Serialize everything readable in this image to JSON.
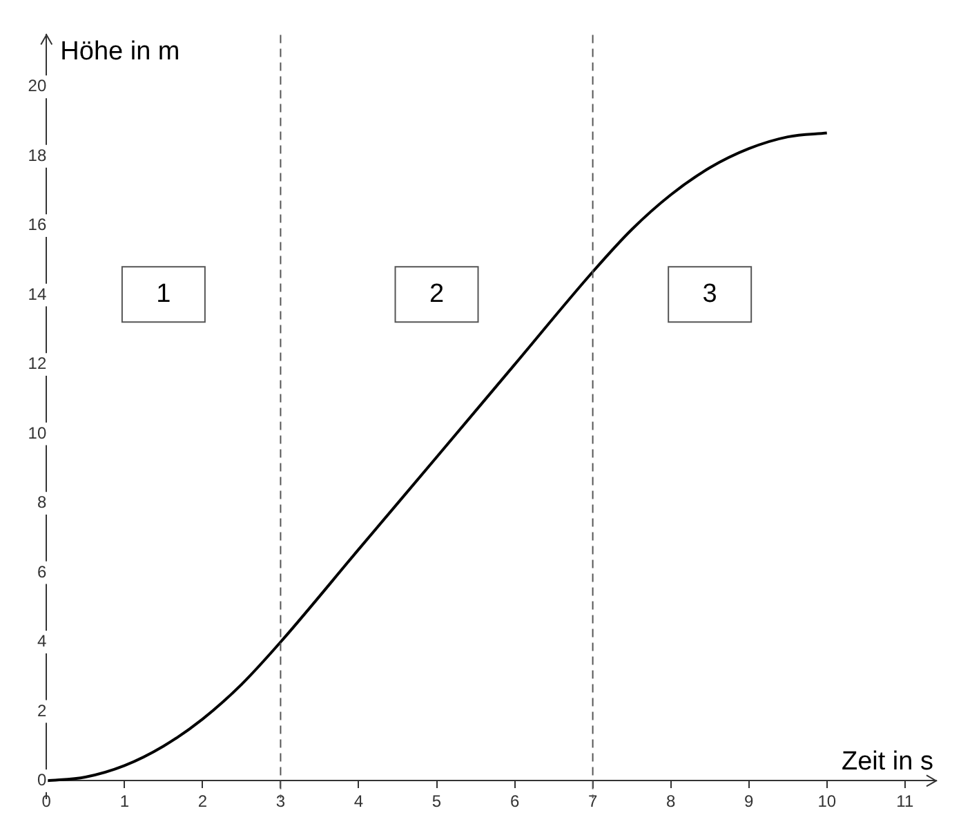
{
  "chart_data": {
    "type": "line",
    "xlabel": "Zeit in s",
    "ylabel": "Höhe in m",
    "x": [
      0,
      0.5,
      1,
      1.5,
      2,
      2.5,
      3,
      4,
      5,
      6,
      7,
      7.5,
      8,
      8.5,
      9,
      9.5,
      10
    ],
    "series": [
      {
        "color": "#000000",
        "values": [
          0,
          0.11,
          0.44,
          1,
          1.78,
          2.78,
          4,
          6.67,
          9.33,
          12,
          14.67,
          15.89,
          16.89,
          17.67,
          18.22,
          18.56,
          18.67
        ]
      }
    ],
    "xlim": [
      -0.1,
      11.4
    ],
    "xticks": [
      0,
      1,
      2,
      3,
      4,
      5,
      6,
      7,
      8,
      9,
      10,
      11
    ],
    "ylim": [
      -0.5,
      21.5
    ],
    "yticks": [
      0,
      2,
      4,
      6,
      8,
      10,
      12,
      14,
      16,
      18,
      20
    ],
    "ref_lines": [
      {
        "axis": "x",
        "value": 3,
        "color": "#555555",
        "line_style": "dashed"
      },
      {
        "axis": "x",
        "value": 7,
        "color": "#555555",
        "line_style": "dashed"
      }
    ],
    "annotations": [
      "1",
      "2",
      "3"
    ],
    "grid": false,
    "legend": false,
    "marker": "none",
    "line_style": "solid"
  }
}
